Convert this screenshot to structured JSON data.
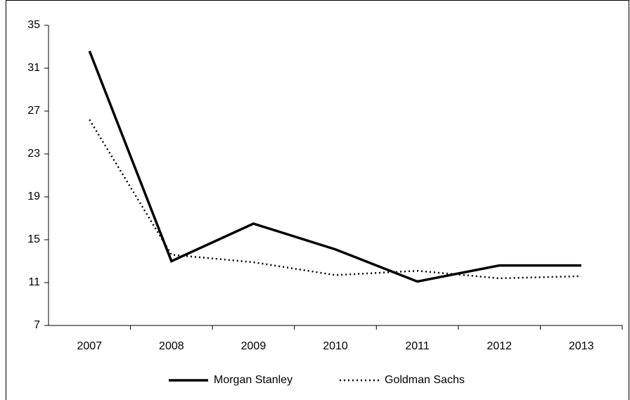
{
  "chart_data": {
    "type": "line",
    "categories": [
      "2007",
      "2008",
      "2009",
      "2010",
      "2011",
      "2012",
      "2013"
    ],
    "series": [
      {
        "name": "Morgan Stanley",
        "color": "#000000",
        "dash": "solid",
        "values": [
          32.6,
          13.0,
          16.5,
          14.1,
          11.1,
          12.6,
          12.6
        ]
      },
      {
        "name": "Goldman Sachs",
        "color": "#000000",
        "dash": "dotted",
        "values": [
          26.2,
          13.6,
          12.9,
          11.7,
          12.1,
          11.4,
          11.6
        ]
      }
    ],
    "ylim": [
      7,
      35
    ],
    "yticks": [
      7,
      11,
      15,
      19,
      23,
      27,
      31,
      35
    ],
    "grid": false,
    "legend": "bottom"
  }
}
